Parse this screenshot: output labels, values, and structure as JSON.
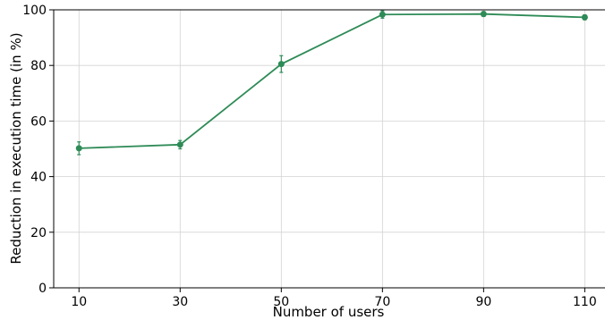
{
  "chart_data": {
    "type": "line",
    "title": "",
    "xlabel": "Number of users",
    "ylabel": "Reduction in execution time (in %)",
    "x": [
      10,
      30,
      50,
      70,
      90,
      110
    ],
    "x_tick_labels": [
      "10",
      "30",
      "50",
      "70",
      "90",
      "110"
    ],
    "y_ticks": [
      0,
      20,
      40,
      60,
      80,
      100
    ],
    "y_tick_labels": [
      "0",
      "20",
      "40",
      "60",
      "80",
      "100"
    ],
    "xlim": [
      5,
      114
    ],
    "ylim": [
      0,
      100
    ],
    "grid": true,
    "series": [
      {
        "values": [
          50.2,
          51.5,
          80.5,
          98.3,
          98.5,
          97.3
        ],
        "errors": [
          2.3,
          1.5,
          3.0,
          1.3,
          0.9,
          0.9
        ],
        "color": "#2e8b57"
      }
    ]
  }
}
